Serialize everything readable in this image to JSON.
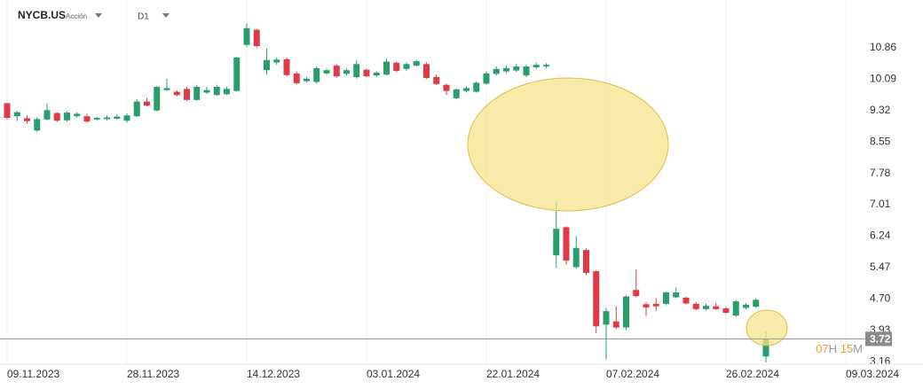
{
  "header": {
    "symbol": "NYCB.US",
    "kind": "Acción",
    "timeframe": "D1"
  },
  "timer": {
    "hours": "07",
    "hours_unit": "H",
    "minutes": "15",
    "minutes_unit": "M"
  },
  "chart_data": {
    "type": "candlestick",
    "categories": [
      "09.11.2023",
      null,
      null,
      null,
      null,
      null,
      null,
      null,
      null,
      null,
      null,
      null,
      "28.11.2023",
      null,
      null,
      null,
      null,
      null,
      null,
      null,
      null,
      null,
      null,
      null,
      "14.12.2023",
      null,
      null,
      null,
      null,
      null,
      null,
      null,
      null,
      null,
      null,
      null,
      "03.01.2024",
      null,
      null,
      null,
      null,
      null,
      null,
      null,
      null,
      null,
      null,
      null,
      "22.01.2024",
      null,
      null,
      null,
      null,
      null,
      null,
      null,
      null,
      null,
      null,
      null,
      "07.02.2024",
      null,
      null,
      null,
      null,
      null,
      null,
      null,
      null,
      null,
      null,
      null,
      "26.02.2024",
      null,
      null,
      null,
      null,
      null,
      null,
      null,
      null,
      null,
      null,
      null,
      "09.03.2024"
    ],
    "open": [
      9.5,
      9.18,
      9.13,
      8.83,
      9.1,
      9.26,
      9.08,
      9.18,
      9.18,
      9.1,
      9.11,
      9.12,
      9.07,
      9.18,
      9.54,
      9.32,
      9.82,
      9.78,
      9.85,
      9.58,
      9.76,
      9.7,
      9.72,
      9.8,
      10.93,
      11.3,
      10.31,
      10.5,
      10.58,
      10.23,
      10.04,
      10.02,
      10.23,
      10.42,
      10.22,
      10.14,
      10.32,
      10.18,
      10.2,
      10.49,
      10.34,
      10.42,
      10.46,
      10.14,
      9.95,
      9.62,
      9.8,
      9.78,
      9.98,
      10.22,
      10.28,
      10.3,
      10.18,
      10.38,
      10.4,
      5.77,
      6.46,
      5.48,
      5.9,
      5.38,
      4.07,
      4.15,
      4.0,
      4.92,
      4.57,
      4.58,
      4.58,
      4.74,
      4.73,
      4.58,
      4.45,
      4.52,
      4.47,
      4.29,
      4.48,
      4.51,
      3.29,
      null,
      null,
      null,
      null,
      null,
      null,
      null,
      null
    ],
    "high": [
      9.52,
      9.31,
      9.2,
      9.15,
      9.5,
      9.28,
      9.3,
      9.28,
      9.24,
      9.17,
      9.2,
      9.22,
      9.25,
      9.6,
      9.62,
      9.92,
      10.1,
      9.82,
      9.9,
      9.95,
      9.9,
      9.95,
      9.9,
      10.64,
      11.46,
      11.32,
      10.84,
      10.62,
      10.62,
      10.28,
      10.14,
      10.4,
      10.35,
      10.46,
      10.35,
      10.56,
      10.35,
      10.28,
      10.6,
      10.52,
      10.5,
      10.56,
      10.5,
      10.2,
      9.98,
      9.86,
      9.92,
      10.04,
      10.28,
      10.4,
      10.42,
      10.46,
      10.44,
      10.5,
      10.48,
      7.1,
      6.48,
      6.24,
      5.94,
      5.4,
      4.48,
      4.52,
      4.78,
      5.42,
      4.62,
      4.72,
      4.88,
      4.98,
      4.76,
      4.62,
      4.58,
      4.6,
      4.5,
      4.68,
      4.6,
      4.72,
      3.9,
      null,
      null,
      null,
      null,
      null,
      null,
      null,
      null
    ],
    "low": [
      9.1,
      9.06,
      9.0,
      8.8,
      9.08,
      9.04,
      9.05,
      9.14,
      9.02,
      9.08,
      9.08,
      9.1,
      9.02,
      9.16,
      9.42,
      9.3,
      9.8,
      9.66,
      9.55,
      9.56,
      9.72,
      9.68,
      9.7,
      9.78,
      10.88,
      10.86,
      10.2,
      10.44,
      10.16,
      9.96,
      10.0,
      9.98,
      10.2,
      10.12,
      10.18,
      10.1,
      10.14,
      10.14,
      10.18,
      10.26,
      10.3,
      10.4,
      10.1,
      9.94,
      9.7,
      9.6,
      9.76,
      9.76,
      9.96,
      10.18,
      10.24,
      10.26,
      10.14,
      10.34,
      10.36,
      5.46,
      5.54,
      5.44,
      5.28,
      3.86,
      3.22,
      3.96,
      3.94,
      4.74,
      4.28,
      4.4,
      4.54,
      4.72,
      4.56,
      4.42,
      4.42,
      4.43,
      4.34,
      4.26,
      4.44,
      4.48,
      3.14,
      null,
      null,
      null,
      null,
      null,
      null,
      null,
      null
    ],
    "close": [
      9.14,
      9.28,
      9.06,
      9.11,
      9.33,
      9.07,
      9.27,
      9.24,
      9.05,
      9.14,
      9.15,
      9.17,
      9.2,
      9.54,
      9.44,
      9.9,
      9.87,
      9.7,
      9.58,
      9.9,
      9.82,
      9.9,
      9.85,
      10.62,
      11.34,
      10.9,
      10.56,
      10.57,
      10.19,
      9.99,
      10.1,
      10.36,
      10.31,
      10.16,
      10.31,
      10.46,
      10.16,
      10.25,
      10.52,
      10.29,
      10.46,
      10.53,
      10.12,
      9.97,
      9.8,
      9.84,
      9.87,
      10.0,
      10.23,
      10.34,
      10.36,
      10.4,
      10.4,
      10.44,
      10.44,
      6.42,
      5.64,
      5.95,
      5.34,
      4.03,
      4.4,
      4.0,
      4.76,
      4.77,
      4.49,
      4.52,
      4.86,
      4.86,
      4.59,
      4.45,
      4.53,
      4.45,
      4.36,
      4.64,
      4.56,
      4.68,
      3.72,
      null,
      null,
      null,
      null,
      null,
      null,
      null,
      null
    ],
    "up_color": "#2a9d6c",
    "down_color": "#e03a47",
    "last_price": 3.72,
    "ylim": [
      3.1,
      11.9
    ],
    "yticks": [
      10.86,
      10.09,
      9.32,
      8.55,
      7.78,
      7.01,
      6.24,
      5.47,
      {
        "value": 4.7,
        "label": "4.70"
      },
      3.93,
      3.16
    ],
    "grid": true
  }
}
